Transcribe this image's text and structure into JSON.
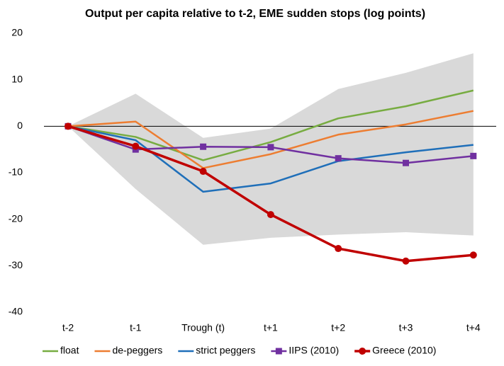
{
  "chart_data": {
    "type": "line",
    "title": "Output per capita relative to t-2, EME sudden stops (log points)",
    "categories": [
      "t-2",
      "t-1",
      "Trough (t)",
      "t+1",
      "t+2",
      "t+3",
      "t+4"
    ],
    "range_band": {
      "color": "#d9d9d9",
      "upper": [
        0,
        7,
        -2.5,
        -0.5,
        8,
        11.5,
        15.7
      ],
      "lower": [
        0,
        -13.5,
        -25.5,
        -24,
        -23.3,
        -22.8,
        -23.5
      ]
    },
    "series": [
      {
        "name": "float",
        "color": "#77ac41",
        "line_width": 2.5,
        "values": [
          0,
          -2.3,
          -7.3,
          -3.4,
          1.7,
          4.3,
          7.7
        ]
      },
      {
        "name": "de-peggers",
        "color": "#ed7d31",
        "line_width": 2.5,
        "values": [
          0,
          1,
          -9,
          -6,
          -1.8,
          0.4,
          3.3
        ]
      },
      {
        "name": "strict peggers",
        "color": "#1f6fb9",
        "line_width": 2.5,
        "values": [
          0,
          -3,
          -14.1,
          -12.3,
          -7.5,
          -5.6,
          -4
        ]
      },
      {
        "name": "IIPS (2010)",
        "color": "#7030a0",
        "line_width": 2.5,
        "marker": "square",
        "values": [
          0,
          -5,
          -4.4,
          -4.5,
          -6.9,
          -7.9,
          -6.4
        ]
      },
      {
        "name": "Greece (2010)",
        "color": "#c00000",
        "line_width": 3.5,
        "marker": "circle",
        "values": [
          0,
          -4.3,
          -9.7,
          -19,
          -26.3,
          -29,
          -27.7
        ]
      }
    ],
    "ylim": [
      -40,
      20
    ],
    "yticks": [
      -40,
      -30,
      -20,
      -10,
      0,
      10,
      20
    ],
    "grid": false,
    "legend": "bottom"
  }
}
